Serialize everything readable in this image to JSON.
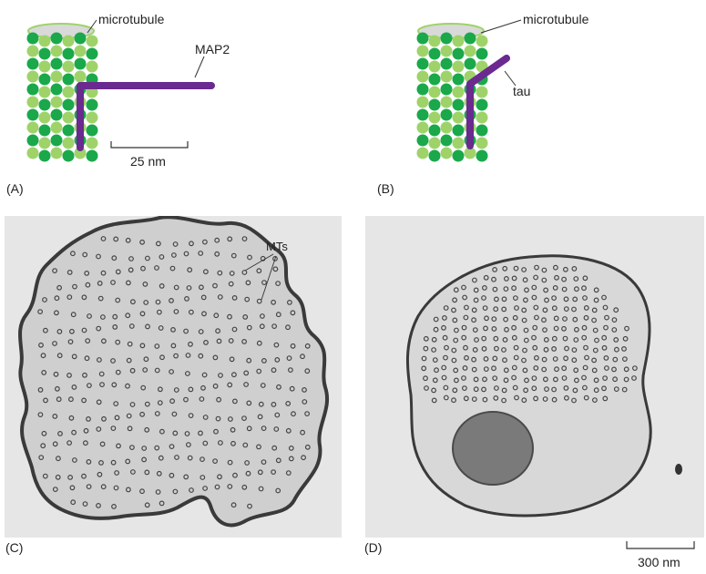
{
  "panels": {
    "a": {
      "letter": "(A)",
      "microtubule_label": "microtubule",
      "protein_label": "MAP2",
      "scale_label": "25 nm"
    },
    "b": {
      "letter": "(B)",
      "microtubule_label": "microtubule",
      "protein_label": "tau"
    },
    "c": {
      "letter": "(C)",
      "annotation": "MTs"
    },
    "d": {
      "letter": "(D)",
      "scale_label": "300 nm"
    }
  },
  "colors": {
    "tubulin_dark": "#1aa84b",
    "tubulin_light": "#9fd36a",
    "map_protein": "#6b2a8f",
    "micrograph_bg": "#e4e4e4",
    "membrane": "#3a3a3a",
    "cytoplasm": "#c9c9c9"
  }
}
